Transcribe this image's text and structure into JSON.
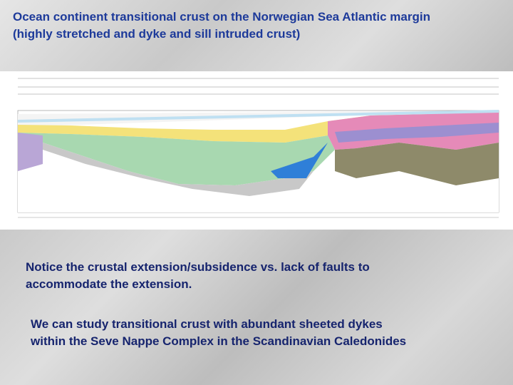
{
  "header": {
    "title": [
      "Ocean continent transitional crust on the Norwegian Sea Atlantic margin",
      "(highly stretched and dyke and sill intruded crust)"
    ]
  },
  "notes": [
    [
      "Notice the crustal extension/subsidence vs. lack of faults to",
      "accommodate the extension."
    ],
    [
      "We can study transitional crust with abundant sheeted dykes",
      "within the Seve Nappe Complex in the Scandinavian Caledonides"
    ]
  ]
}
